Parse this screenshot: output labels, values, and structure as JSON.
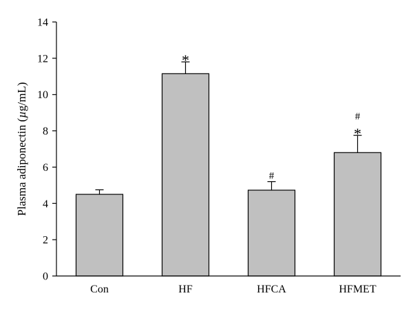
{
  "chart_data": {
    "type": "bar",
    "categories": [
      "Con",
      "HF",
      "HFCA",
      "HFMET"
    ],
    "values": [
      4.5,
      11.15,
      4.73,
      6.8
    ],
    "errors": [
      0.25,
      0.65,
      0.47,
      0.95
    ],
    "annotations": [
      "",
      "*",
      "#",
      "#\n*"
    ],
    "title": "",
    "xlabel": "",
    "ylabel_prefix": "Plasma adiponectin (",
    "ylabel_unit_italic": "µ",
    "ylabel_suffix": "g/mL)",
    "ylim": [
      0,
      14
    ],
    "yticks": [
      0,
      2,
      4,
      6,
      8,
      10,
      12,
      14
    ],
    "bar_color": "#c0c0c0",
    "edge_color": "#000000",
    "grid": false,
    "legend": "none"
  }
}
